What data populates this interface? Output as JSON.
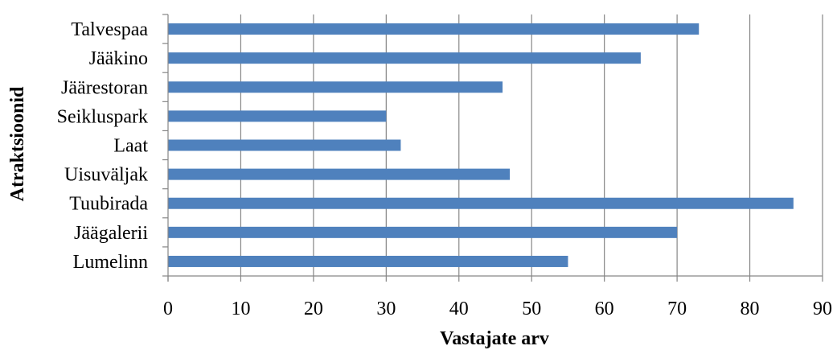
{
  "chart_data": {
    "type": "bar",
    "orientation": "horizontal",
    "categories": [
      "Talvespaa",
      "Jääkino",
      "Jäärestoran",
      "Seikluspark",
      "Laat",
      "Uisuväljak",
      "Tuubirada",
      "Jäägalerii",
      "Lumelinn"
    ],
    "values": [
      73,
      65,
      46,
      30,
      32,
      47,
      86,
      70,
      55
    ],
    "xlabel": "Vastajate arv",
    "ylabel": "Atraktsioonid",
    "xlim": [
      0,
      90
    ],
    "xticks": [
      "0",
      "10",
      "20",
      "30",
      "40",
      "50",
      "60",
      "70",
      "80",
      "90"
    ],
    "grid": "vertical",
    "legend": "none",
    "colors": {
      "bar": "#4f81bd",
      "grid": "#868686",
      "axis": "#868686"
    }
  }
}
